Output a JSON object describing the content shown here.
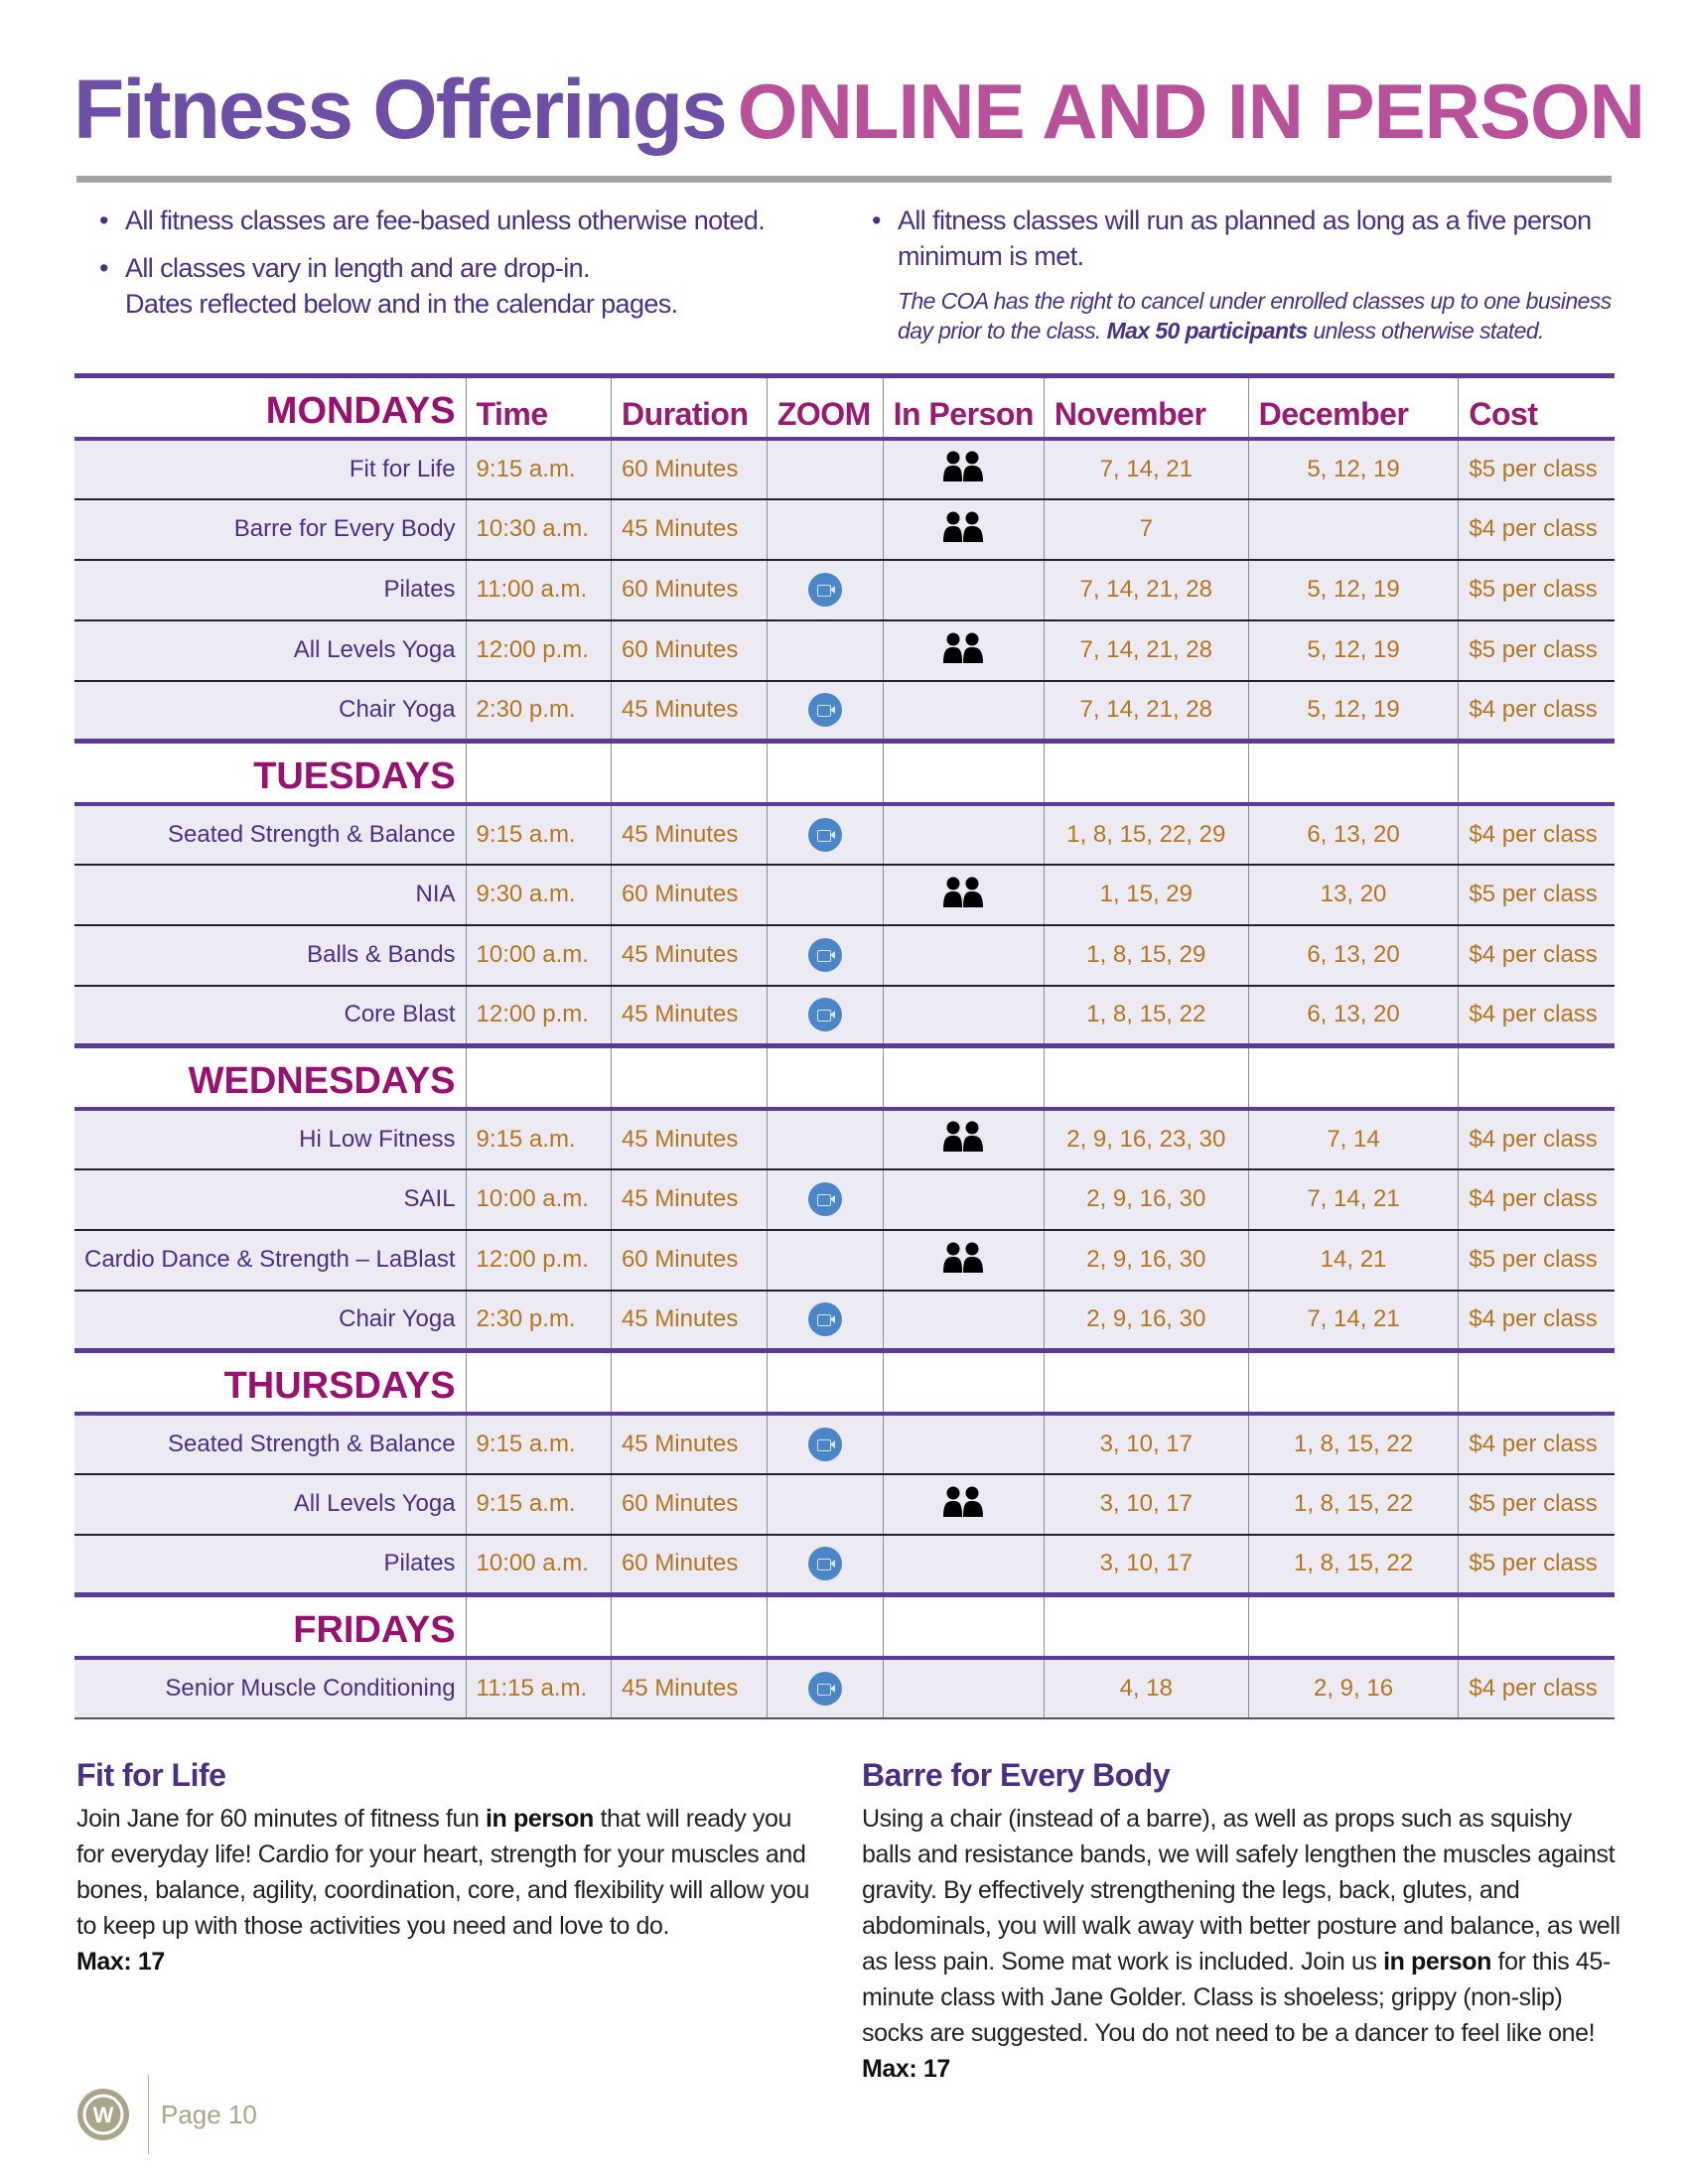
{
  "title": {
    "part1": "Fitness Offerings",
    "part2": "ONLINE AND IN PERSON"
  },
  "notes": {
    "left": [
      "All fitness classes are fee-based unless otherwise noted.",
      "All classes vary in length and are drop-in."
    ],
    "left_cont": "Dates reflected below and in the calendar pages.",
    "right": "All fitness classes will run as planned as long as a five person minimum is met.",
    "right_italic_pre": "The COA has the right to cancel under enrolled classes up to one business day prior to the class. ",
    "right_italic_bold": "Max 50 participants",
    "right_italic_post": " unless otherwise stated."
  },
  "columns": [
    "Time",
    "Duration",
    "ZOOM",
    "In Person",
    "November",
    "December",
    "Cost"
  ],
  "colors": {
    "title_purple": "#6d50a6",
    "title_pink": "#b8509a",
    "day_magenta": "#9a1070",
    "class_purple": "#4a2f86",
    "value_orange": "#b5741e",
    "zoom_blue": "#4a86c8"
  },
  "days": [
    {
      "day": "MONDAYS",
      "classes": [
        {
          "name": "Fit for Life",
          "time": "9:15 a.m.",
          "duration": "60 Minutes",
          "zoom": false,
          "in_person": true,
          "november": "7, 14, 21",
          "december": "5, 12, 19",
          "cost": "$5 per class"
        },
        {
          "name": "Barre for Every Body",
          "time": "10:30 a.m.",
          "duration": "45 Minutes",
          "zoom": false,
          "in_person": true,
          "november": "7",
          "december": "",
          "cost": "$4 per class"
        },
        {
          "name": "Pilates",
          "time": "11:00 a.m.",
          "duration": "60 Minutes",
          "zoom": true,
          "in_person": false,
          "november": "7, 14, 21, 28",
          "december": "5, 12, 19",
          "cost": "$5 per class"
        },
        {
          "name": "All Levels Yoga",
          "time": "12:00 p.m.",
          "duration": "60 Minutes",
          "zoom": false,
          "in_person": true,
          "november": "7, 14, 21, 28",
          "december": "5, 12, 19",
          "cost": "$5 per class"
        },
        {
          "name": "Chair Yoga",
          "time": "2:30 p.m.",
          "duration": "45 Minutes",
          "zoom": true,
          "in_person": false,
          "november": "7, 14, 21, 28",
          "december": "5, 12, 19",
          "cost": "$4 per class"
        }
      ]
    },
    {
      "day": "TUESDAYS",
      "classes": [
        {
          "name": "Seated Strength & Balance",
          "time": "9:15 a.m.",
          "duration": "45 Minutes",
          "zoom": true,
          "in_person": false,
          "november": "1, 8, 15, 22, 29",
          "december": "6, 13, 20",
          "cost": "$4 per class"
        },
        {
          "name": "NIA",
          "time": "9:30 a.m.",
          "duration": "60 Minutes",
          "zoom": false,
          "in_person": true,
          "november": "1, 15, 29",
          "december": "13, 20",
          "cost": "$5 per class"
        },
        {
          "name": "Balls & Bands",
          "time": "10:00 a.m.",
          "duration": "45 Minutes",
          "zoom": true,
          "in_person": false,
          "november": "1, 8, 15, 29",
          "december": "6, 13, 20",
          "cost": "$4 per class"
        },
        {
          "name": "Core Blast",
          "time": "12:00 p.m.",
          "duration": "45 Minutes",
          "zoom": true,
          "in_person": false,
          "november": "1, 8, 15, 22",
          "december": "6, 13, 20",
          "cost": "$4 per class"
        }
      ]
    },
    {
      "day": "WEDNESDAYS",
      "classes": [
        {
          "name": "Hi Low Fitness",
          "time": "9:15 a.m.",
          "duration": "45 Minutes",
          "zoom": false,
          "in_person": true,
          "november": "2, 9, 16, 23, 30",
          "december": "7, 14",
          "cost": "$4 per class"
        },
        {
          "name": "SAIL",
          "time": "10:00 a.m.",
          "duration": "45 Minutes",
          "zoom": true,
          "in_person": false,
          "november": "2, 9, 16, 30",
          "december": "7, 14, 21",
          "cost": "$4 per class"
        },
        {
          "name": "Cardio Dance & Strength – LaBlast",
          "time": "12:00 p.m.",
          "duration": "60 Minutes",
          "zoom": false,
          "in_person": true,
          "november": "2, 9, 16, 30",
          "december": "14, 21",
          "cost": "$5 per class"
        },
        {
          "name": "Chair Yoga",
          "time": "2:30 p.m.",
          "duration": "45 Minutes",
          "zoom": true,
          "in_person": false,
          "november": "2, 9, 16, 30",
          "december": "7, 14, 21",
          "cost": "$4 per class"
        }
      ]
    },
    {
      "day": "THURSDAYS",
      "classes": [
        {
          "name": "Seated Strength & Balance",
          "time": "9:15 a.m.",
          "duration": "45 Minutes",
          "zoom": true,
          "in_person": false,
          "november": "3, 10, 17",
          "december": "1, 8, 15, 22",
          "cost": "$4 per class"
        },
        {
          "name": "All Levels Yoga",
          "time": "9:15 a.m.",
          "duration": "60 Minutes",
          "zoom": false,
          "in_person": true,
          "november": "3, 10, 17",
          "december": "1, 8, 15, 22",
          "cost": "$5 per class"
        },
        {
          "name": "Pilates",
          "time": "10:00 a.m.",
          "duration": "60 Minutes",
          "zoom": true,
          "in_person": false,
          "november": "3, 10, 17",
          "december": "1, 8, 15, 22",
          "cost": "$5 per class"
        }
      ]
    },
    {
      "day": "FRIDAYS",
      "classes": [
        {
          "name": "Senior Muscle Conditioning",
          "time": "11:15 a.m.",
          "duration": "45 Minutes",
          "zoom": true,
          "in_person": false,
          "november": "4, 18",
          "december": "2, 9, 16",
          "cost": "$4 per class"
        }
      ]
    }
  ],
  "descriptions": {
    "left": {
      "title": "Fit for Life",
      "pre": "Join Jane for 60 minutes of fitness fun ",
      "bold": "in person",
      "post": " that will ready you for everyday life! Cardio for your heart, strength for your muscles and bones, balance, agility, coordination, core, and flexibility will allow you to keep up with those activities you need and love to do.",
      "max": "Max: 17"
    },
    "right": {
      "title": "Barre for Every Body",
      "pre": "Using a chair (instead of a barre), as well as props such as squishy balls and resistance bands, we will safely lengthen the muscles against gravity. By effectively strengthening the legs, back, glutes, and abdominals, you will walk away with better posture and balance, as well as less pain. Some mat work is included. Join us ",
      "bold": "in person",
      "post": " for this 45-minute class with Jane Golder. Class is shoeless; grippy (non-slip) socks are suggested. You do not need to be a dancer to feel like one!",
      "max": "Max: 17"
    }
  },
  "footer": {
    "page": "Page 10",
    "logo_icon": "w-circle-logo"
  }
}
